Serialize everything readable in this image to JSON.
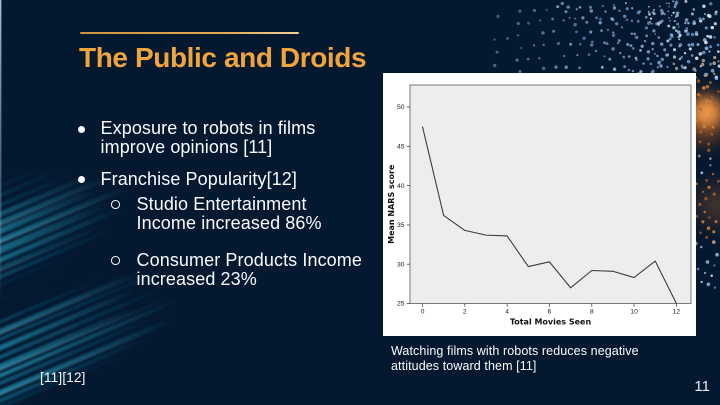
{
  "slide": {
    "title": "The Public and Droids",
    "bullets": [
      {
        "level": 1,
        "marker": "filled-dot",
        "text": "Exposure to robots in films\nimprove opinions [11]"
      },
      {
        "level": 1,
        "marker": "filled-dot",
        "text": "Franchise Popularity[12]"
      },
      {
        "level": 2,
        "marker": "hollow-dot",
        "text": "Studio Entertainment\nIncome increased 86%"
      },
      {
        "level": 2,
        "marker": "hollow-dot",
        "text": "Consumer Products Income\nincreased 23%"
      }
    ],
    "chart_caption": "Watching films with robots reduces negative\nattitudes toward them [11]",
    "footnote": "[11][12]",
    "page_number": "11"
  },
  "colors": {
    "background": "#041830",
    "accent_orange": "#f2a43c",
    "title_rule": "#e2a24e",
    "body_text": "#fafbfd",
    "streak_teal": "#1fa9cd",
    "particle_blue": "#8fbee4",
    "glow_orange": "#ff7b16",
    "chart_background": "#ffffff",
    "plot_background": "#ededed"
  },
  "chart_data": {
    "type": "line",
    "title": "",
    "xlabel": "Total Movies Seen",
    "ylabel": "Mean NARS score",
    "x": [
      0,
      1,
      2,
      3,
      4,
      5,
      6,
      7,
      8,
      9,
      10,
      11,
      12
    ],
    "values": [
      47.5,
      36.2,
      34.3,
      33.7,
      33.6,
      29.7,
      30.3,
      27.0,
      29.2,
      29.1,
      28.3,
      30.4,
      25.0
    ],
    "xticks": [
      0,
      2,
      4,
      6,
      8,
      10,
      12
    ],
    "yticks": [
      25,
      30,
      35,
      40,
      45,
      50
    ],
    "xlim": [
      -0.59,
      12.69
    ],
    "ylim": [
      25,
      52.8
    ],
    "grid": false,
    "legend": "none"
  }
}
